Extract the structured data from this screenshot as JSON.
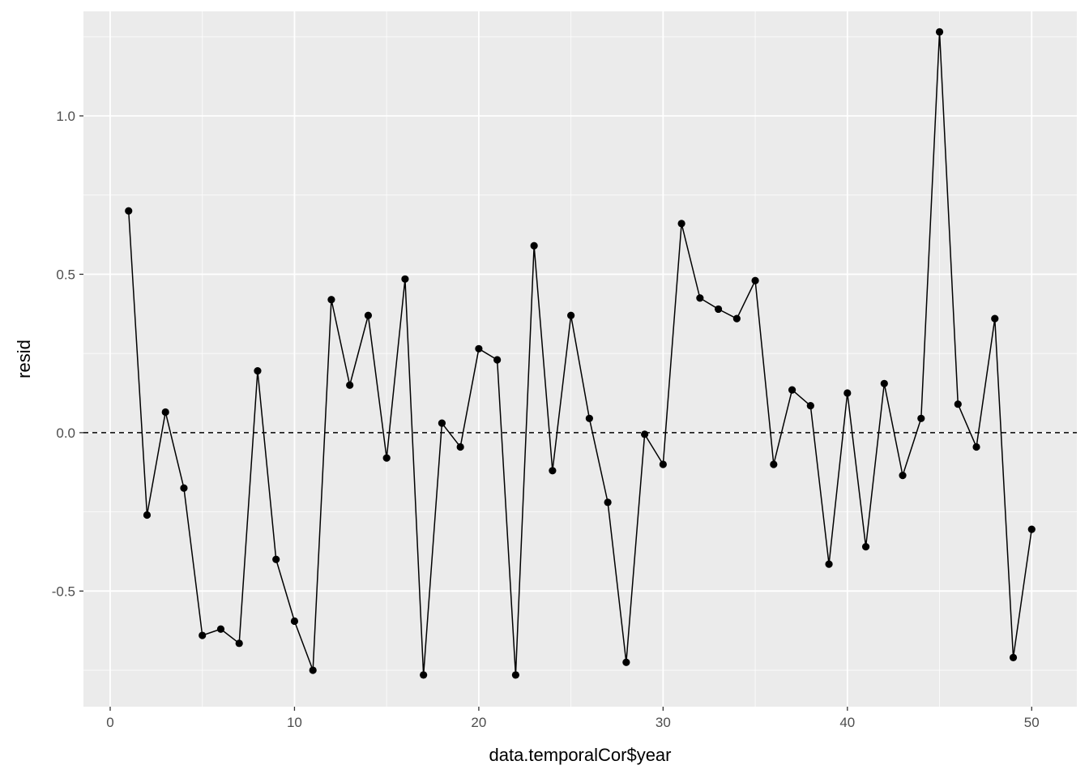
{
  "chart_data": {
    "type": "line",
    "title": "",
    "xlabel": "data.temporalCor$year",
    "ylabel": "resid",
    "xlim": [
      -1.45,
      52.45
    ],
    "ylim": [
      -0.865,
      1.33
    ],
    "x_ticks": [
      0,
      10,
      20,
      30,
      40,
      50
    ],
    "x_tick_labels": [
      "0",
      "10",
      "20",
      "30",
      "40",
      "50"
    ],
    "y_ticks": [
      -0.5,
      0.0,
      0.5,
      1.0
    ],
    "y_tick_labels": [
      "-0.5",
      "0.0",
      "0.5",
      "1.0"
    ],
    "x_minor": [
      5,
      15,
      25,
      35,
      45
    ],
    "y_minor": [
      -0.75,
      -0.25,
      0.25,
      0.75,
      1.25
    ],
    "grid": true,
    "reference_line": {
      "y": 0,
      "style": "dashed"
    },
    "series": [
      {
        "x": [
          1,
          2,
          3,
          4,
          5,
          6,
          7,
          8,
          9,
          10,
          11,
          12,
          13,
          14,
          15,
          16,
          17,
          18,
          19,
          20,
          21,
          22,
          23,
          24,
          25,
          26,
          27,
          28,
          29,
          30,
          31,
          32,
          33,
          34,
          35,
          36,
          37,
          38,
          39,
          40,
          41,
          42,
          43,
          44,
          45,
          46,
          47,
          48,
          49,
          50
        ],
        "values": [
          0.7,
          -0.26,
          0.065,
          -0.175,
          -0.64,
          -0.62,
          -0.665,
          0.195,
          -0.4,
          -0.595,
          -0.75,
          0.42,
          0.15,
          0.37,
          -0.08,
          0.485,
          -0.765,
          0.03,
          -0.045,
          0.265,
          0.23,
          -0.765,
          0.59,
          -0.12,
          0.37,
          0.045,
          -0.22,
          -0.725,
          -0.005,
          -0.1,
          0.66,
          0.425,
          0.39,
          0.36,
          0.48,
          -0.1,
          0.135,
          0.085,
          -0.415,
          0.125,
          -0.36,
          0.155,
          -0.135,
          0.045,
          1.265,
          0.09,
          -0.045,
          0.36,
          -0.71,
          -0.305
        ]
      }
    ],
    "colors": {
      "panel": "#ebebeb",
      "grid_major": "#ffffff",
      "line": "#000000",
      "tick_text": "#4d4d4d",
      "tick_mark": "#333333"
    }
  }
}
